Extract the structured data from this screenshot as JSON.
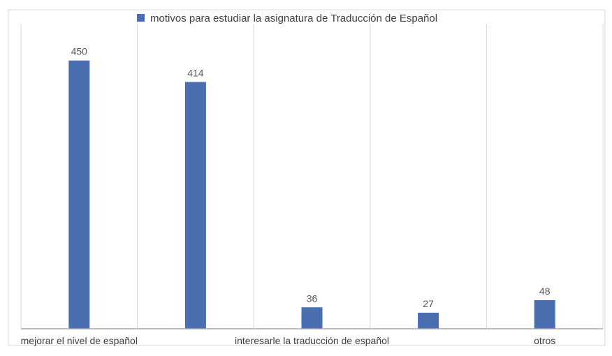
{
  "chart_data": {
    "type": "bar",
    "title": "",
    "categories": [
      "mejorar el nivel de español",
      "",
      "interesarle la traducción de español",
      "",
      "otros"
    ],
    "series": [
      {
        "name": "motivos para estudiar la asignatura de Traducción de Español",
        "values": [
          450,
          414,
          36,
          27,
          48
        ],
        "color": "#4a6eb0"
      }
    ],
    "xlabel": "",
    "ylabel": "",
    "ylim": [
      0,
      500
    ],
    "grid": "vertical category separators",
    "legend": "top",
    "data_labels": true
  }
}
